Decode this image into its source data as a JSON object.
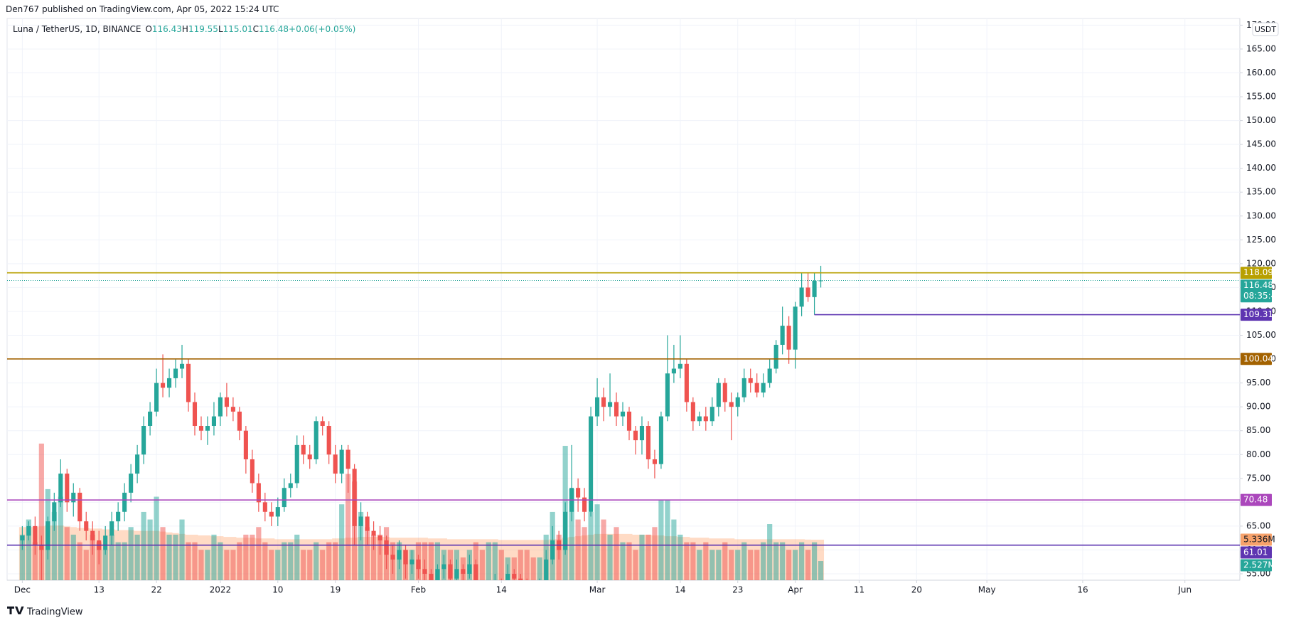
{
  "page": {
    "published": "Den767 published on TradingView.com, Apr 05, 2022 15:24 UTC",
    "footer": "TradingView"
  },
  "chart_data": {
    "type": "candlestick",
    "title": "Luna / TetherUS, 1D, BINANCE",
    "ohlc_letters": [
      "O",
      "H",
      "L",
      "C"
    ],
    "change": "+0.06",
    "change_pct": "(+0.05%)",
    "y_unit": "USDT",
    "countdown": "08:35:48",
    "up_color": "#26a69a",
    "down_color": "#ef5350",
    "grid": true,
    "open": [
      62,
      63,
      65,
      61,
      60,
      66,
      70,
      76,
      70,
      72,
      66,
      64,
      62,
      60,
      63,
      66,
      68,
      72,
      76,
      80,
      86,
      89,
      95,
      94,
      96,
      98,
      99,
      91,
      86,
      85,
      86,
      88,
      92,
      90,
      89,
      85,
      79,
      74,
      70,
      68,
      67,
      69,
      73,
      74,
      82,
      80,
      79,
      87,
      86,
      80,
      76,
      81,
      77,
      65,
      67,
      64,
      63,
      62,
      59,
      58,
      60,
      57,
      58,
      56,
      55,
      53,
      56,
      57,
      54,
      56,
      55,
      57,
      52,
      50,
      51,
      53,
      52,
      55,
      54,
      52,
      51,
      50,
      53,
      58,
      62,
      60,
      68,
      73,
      71,
      68,
      88,
      92,
      90,
      91,
      88,
      89,
      85,
      83,
      86,
      79,
      78,
      88,
      97,
      98,
      99,
      91,
      87,
      88,
      87,
      90,
      95,
      91,
      90,
      92,
      96,
      95,
      93,
      95,
      98,
      103,
      107,
      102,
      111,
      115,
      113,
      116.43
    ],
    "high": [
      65,
      66,
      67,
      63,
      67,
      72,
      79,
      77,
      74,
      73,
      68,
      66,
      64,
      65,
      68,
      70,
      74,
      78,
      82,
      88,
      91,
      98,
      101,
      98,
      100,
      103,
      100,
      93,
      88,
      88,
      91,
      93,
      95,
      92,
      90,
      86,
      81,
      76,
      72,
      70,
      71,
      75,
      76,
      84,
      84,
      82,
      88,
      88,
      87,
      82,
      82,
      82,
      78,
      70,
      68,
      66,
      65,
      63,
      61,
      62,
      61,
      60,
      59,
      58,
      56,
      57,
      59,
      58,
      58,
      57,
      59,
      58,
      53,
      53,
      55,
      54,
      57,
      56,
      55,
      54,
      53,
      54,
      60,
      65,
      64,
      70,
      82,
      75,
      73,
      90,
      96,
      94,
      97,
      93,
      91,
      90,
      86,
      88,
      87,
      81,
      89,
      105,
      103,
      105,
      100,
      92,
      89,
      90,
      92,
      96,
      96,
      93,
      93,
      98,
      98,
      97,
      97,
      100,
      104,
      111,
      109,
      112,
      118,
      118,
      118,
      119.55
    ],
    "low": [
      60,
      62,
      59,
      51,
      58,
      64,
      69,
      68,
      67,
      64,
      62,
      59,
      57,
      59,
      61,
      64,
      66,
      70,
      74,
      78,
      84,
      88,
      92,
      92,
      94,
      96,
      89,
      84,
      83,
      82,
      84,
      86,
      88,
      87,
      83,
      76,
      72,
      68,
      66,
      65,
      65,
      68,
      71,
      73,
      78,
      77,
      78,
      84,
      78,
      74,
      74,
      72,
      61,
      62,
      61,
      60,
      59,
      56,
      55,
      56,
      54,
      55,
      54,
      53,
      51,
      52,
      54,
      52,
      53,
      53,
      54,
      50,
      48,
      49,
      50,
      50,
      51,
      52,
      50,
      49,
      48,
      49,
      52,
      57,
      58,
      59,
      66,
      68,
      66,
      67,
      86,
      87,
      88,
      86,
      86,
      83,
      80,
      80,
      77,
      75,
      77,
      87,
      95,
      96,
      89,
      85,
      86,
      85,
      86,
      88,
      89,
      83,
      88,
      91,
      93,
      92,
      92,
      94,
      97,
      101,
      99,
      98,
      109,
      112,
      109.31,
      115.01
    ],
    "close": [
      63,
      65,
      61,
      60,
      66,
      70,
      76,
      70,
      72,
      66,
      64,
      62,
      60,
      63,
      66,
      68,
      72,
      76,
      80,
      86,
      89,
      95,
      94,
      96,
      98,
      99,
      91,
      86,
      85,
      86,
      88,
      92,
      90,
      89,
      85,
      79,
      74,
      70,
      68,
      67,
      69,
      73,
      74,
      82,
      80,
      79,
      87,
      86,
      80,
      76,
      81,
      77,
      65,
      67,
      64,
      63,
      62,
      59,
      58,
      60,
      57,
      58,
      56,
      55,
      53,
      56,
      57,
      54,
      56,
      55,
      57,
      52,
      50,
      51,
      53,
      52,
      55,
      54,
      52,
      51,
      50,
      53,
      58,
      62,
      60,
      68,
      73,
      71,
      68,
      88,
      92,
      90,
      91,
      88,
      89,
      85,
      83,
      86,
      79,
      78,
      88,
      97,
      98,
      99,
      91,
      87,
      88,
      87,
      90,
      95,
      91,
      90,
      92,
      96,
      95,
      93,
      95,
      98,
      103,
      107,
      102,
      111,
      115,
      113,
      116.43,
      116.48
    ],
    "volume": [
      6,
      8,
      5,
      18,
      12,
      9,
      11,
      7,
      6,
      5,
      4,
      6,
      5,
      4,
      6,
      5,
      5,
      7,
      6,
      9,
      8,
      11,
      7,
      6,
      6,
      8,
      5,
      5,
      4,
      4,
      6,
      5,
      4,
      4,
      5,
      6,
      6,
      7,
      5,
      4,
      4,
      5,
      5,
      6,
      4,
      4,
      5,
      4,
      5,
      5,
      10,
      14,
      13,
      9,
      7,
      6,
      6,
      7,
      5,
      5,
      4,
      4,
      5,
      5,
      5,
      5,
      4,
      4,
      4,
      3,
      4,
      5,
      4,
      5,
      5,
      4,
      3,
      3,
      4,
      4,
      3,
      3,
      6,
      9,
      6,
      17.7,
      12,
      8,
      7,
      9,
      10,
      8,
      6,
      7,
      5,
      5,
      4,
      6,
      6,
      7,
      10.5,
      10.5,
      8,
      6,
      5,
      5,
      4,
      5,
      4,
      4,
      5,
      4,
      4,
      5,
      4,
      4,
      5,
      7.4,
      5,
      5,
      4,
      4,
      5,
      4,
      5,
      2.527
    ],
    "volume_ma": [
      7.0,
      7.0,
      7.0,
      7.1,
      7.2,
      7.2,
      7.2,
      7.1,
      7.0,
      6.9,
      6.9,
      6.8,
      6.8,
      6.7,
      6.7,
      6.6,
      6.6,
      6.6,
      6.5,
      6.5,
      6.5,
      6.5,
      6.4,
      6.3,
      6.2,
      6.1,
      6.0,
      6.0,
      5.9,
      5.9,
      5.8,
      5.8,
      5.7,
      5.7,
      5.6,
      5.6,
      5.6,
      5.5,
      5.5,
      5.5,
      5.4,
      5.4,
      5.4,
      5.4,
      5.4,
      5.4,
      5.4,
      5.4,
      5.4,
      5.5,
      5.5,
      5.6,
      5.6,
      5.7,
      5.7,
      5.7,
      5.7,
      5.7,
      5.6,
      5.6,
      5.6,
      5.6,
      5.6,
      5.6,
      5.5,
      5.5,
      5.5,
      5.4,
      5.4,
      5.4,
      5.4,
      5.4,
      5.4,
      5.4,
      5.4,
      5.3,
      5.3,
      5.3,
      5.3,
      5.3,
      5.3,
      5.3,
      5.3,
      5.4,
      5.4,
      5.6,
      5.7,
      5.8,
      5.9,
      6.0,
      6.1,
      6.1,
      6.1,
      6.1,
      6.1,
      6.1,
      6.0,
      6.0,
      6.0,
      5.9,
      5.9,
      5.8,
      5.8,
      5.7,
      5.7,
      5.6,
      5.6,
      5.6,
      5.5,
      5.5,
      5.5,
      5.5,
      5.4,
      5.4,
      5.4,
      5.4,
      5.4,
      5.4,
      5.4,
      5.4,
      5.4,
      5.4,
      5.4,
      5.35,
      5.34,
      5.336
    ],
    "volume_color_up": "rgba(38,166,154,0.5)",
    "volume_color_down": "rgba(239,83,80,0.5)",
    "volume_ma_color": "rgba(255,152,90,0.35)",
    "volume_ma_tag": {
      "value": 5.336,
      "label": "5.336M",
      "color": "#f7a26b"
    },
    "volume_tag": {
      "value": 2.527,
      "label": "2.527M",
      "color": "#26a69a"
    },
    "vlim": [
      0,
      74
    ],
    "levels": [
      {
        "value": 118.09,
        "color": "#b8a000"
      },
      {
        "value": 109.31,
        "color": "#5e35b1",
        "x_start": 124
      },
      {
        "value": 100.04,
        "color": "#a36200"
      },
      {
        "value": 70.48,
        "color": "#ab47bc"
      },
      {
        "value": 61.01,
        "color": "#5e35b1"
      }
    ],
    "xlim": [
      -2.38,
      190.6
    ],
    "xticks": [
      {
        "value": 0,
        "label": "Dec"
      },
      {
        "value": 12,
        "label": "13"
      },
      {
        "value": 21,
        "label": "22"
      },
      {
        "value": 31,
        "label": "2022"
      },
      {
        "value": 40,
        "label": "10"
      },
      {
        "value": 49,
        "label": "19"
      },
      {
        "value": 62,
        "label": "Feb"
      },
      {
        "value": 75,
        "label": "14"
      },
      {
        "value": 90,
        "label": "Mar"
      },
      {
        "value": 103,
        "label": "14"
      },
      {
        "value": 112,
        "label": "23"
      },
      {
        "value": 121,
        "label": "Apr"
      },
      {
        "value": 131,
        "label": "11"
      },
      {
        "value": 140,
        "label": "20"
      },
      {
        "value": 151,
        "label": "May"
      },
      {
        "value": 166,
        "label": "16"
      },
      {
        "value": 182,
        "label": "Jun"
      }
    ],
    "ylim": [
      53.66,
      171.4
    ],
    "yticks": [
      {
        "value": 55,
        "label": "55.00"
      },
      {
        "value": 60,
        "label": "60.00"
      },
      {
        "value": 65,
        "label": "65.00"
      },
      {
        "value": 70,
        "label": "70.00"
      },
      {
        "value": 75,
        "label": "75.00"
      },
      {
        "value": 80,
        "label": "80.00"
      },
      {
        "value": 85,
        "label": "85.00"
      },
      {
        "value": 90,
        "label": "90.00"
      },
      {
        "value": 95,
        "label": "95.00"
      },
      {
        "value": 100,
        "label": "100.00"
      },
      {
        "value": 105,
        "label": "105.00"
      },
      {
        "value": 110,
        "label": "110.00"
      },
      {
        "value": 115,
        "label": "115.00"
      },
      {
        "value": 120,
        "label": "120.00"
      },
      {
        "value": 125,
        "label": "125.00"
      },
      {
        "value": 130,
        "label": "130.00"
      },
      {
        "value": 135,
        "label": "135.00"
      },
      {
        "value": 140,
        "label": "140.00"
      },
      {
        "value": 145,
        "label": "145.00"
      },
      {
        "value": 150,
        "label": "150.00"
      },
      {
        "value": 155,
        "label": "155.00"
      },
      {
        "value": 160,
        "label": "160.00"
      },
      {
        "value": 165,
        "label": "165.00"
      },
      {
        "value": 170,
        "label": "170.00"
      }
    ]
  }
}
